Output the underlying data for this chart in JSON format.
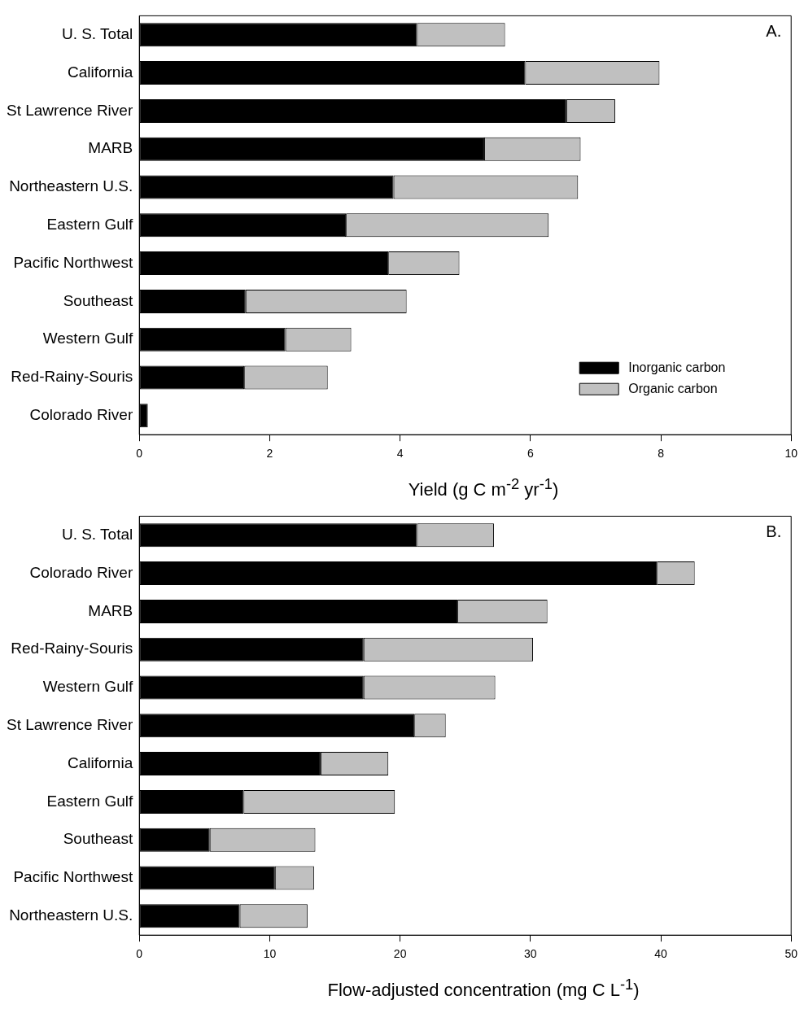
{
  "chart_data": [
    {
      "type": "bar",
      "orientation": "horizontal",
      "stacked": true,
      "xlabel": "Yield (g C m$^{-2}$ yr$^{-1}$)",
      "categories": [
        "U. S. Total",
        "California",
        "St Lawrence River",
        "MARB",
        "Northeastern U.S.",
        "Eastern Gulf",
        "Pacific Northwest",
        "Southeast",
        "Western Gulf",
        "Red-Rainy-Souris",
        "Colorado River"
      ],
      "series": [
        {
          "name": "Inorganic carbon",
          "color": "#000000",
          "values": [
            4.26,
            5.92,
            6.55,
            5.29,
            3.9,
            3.17,
            3.82,
            1.63,
            2.24,
            1.61,
            0.13
          ]
        },
        {
          "name": "Organic carbon",
          "color": "#c0c0c0",
          "values": [
            1.35,
            2.06,
            0.75,
            1.48,
            2.83,
            3.11,
            1.09,
            2.47,
            1.01,
            1.28,
            0
          ]
        }
      ],
      "xlim": [
        0,
        10
      ],
      "xticks": [
        0,
        2,
        4,
        6,
        8,
        10
      ],
      "grid": false,
      "legend": "bottom right",
      "annotations": [
        "A."
      ]
    },
    {
      "type": "bar",
      "orientation": "horizontal",
      "stacked": true,
      "xlabel": "Flow-adjusted concentration (mg C L$^{-1}$)",
      "categories": [
        "U. S. Total",
        "Colorado River",
        "MARB",
        "Red-Rainy-Souris",
        "Western Gulf",
        "St Lawrence River",
        "California",
        "Eastern Gulf",
        "Southeast",
        "Pacific Northwest",
        "Northeastern U.S."
      ],
      "series": [
        {
          "color": "#000000",
          "values": [
            21.3,
            39.7,
            24.4,
            17.2,
            17.2,
            21.1,
            13.9,
            8.0,
            5.4,
            10.4,
            7.7
          ]
        },
        {
          "color": "#c0c0c0",
          "values": [
            5.9,
            2.9,
            6.9,
            13.0,
            10.1,
            2.4,
            5.2,
            11.6,
            8.1,
            3.0,
            5.2
          ]
        }
      ],
      "xlim": [
        0,
        50
      ],
      "xticks": [
        0,
        10,
        20,
        30,
        40,
        50
      ],
      "grid": false,
      "annotations": [
        "B."
      ]
    }
  ]
}
